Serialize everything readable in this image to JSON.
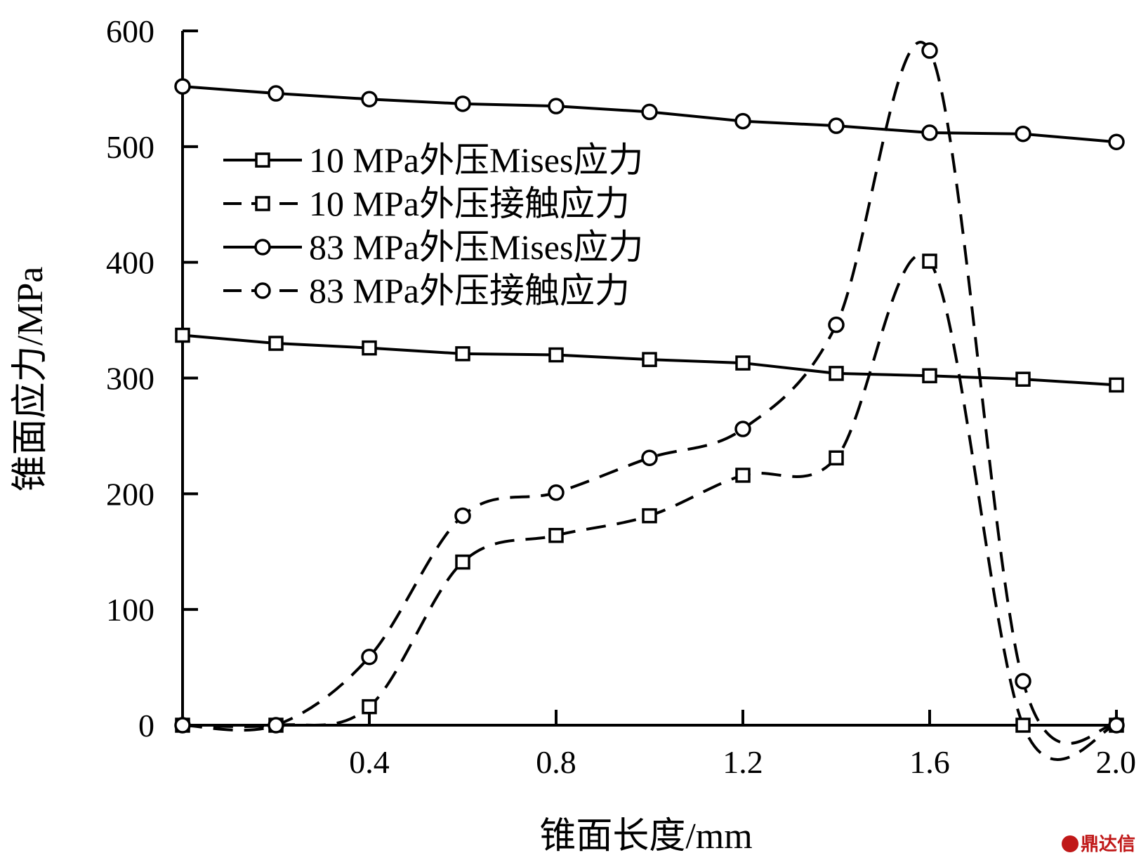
{
  "chart_data": {
    "type": "line",
    "xlabel": "锥面长度/mm",
    "ylabel": "锥面应力/MPa",
    "xlim": [
      0,
      2.0
    ],
    "ylim": [
      0,
      600
    ],
    "x_ticks": [
      0.4,
      0.8,
      1.2,
      1.6,
      2.0
    ],
    "x_tick_labels": [
      "0.4",
      "0.8",
      "1.2",
      "1.6",
      "2.0"
    ],
    "y_ticks": [
      0,
      100,
      200,
      300,
      400,
      500,
      600
    ],
    "y_tick_labels": [
      "0",
      "100",
      "200",
      "300",
      "400",
      "500",
      "600"
    ],
    "grid": false,
    "legend_position": "upper-left",
    "x": [
      0,
      0.2,
      0.4,
      0.6,
      0.8,
      1.0,
      1.2,
      1.4,
      1.6,
      1.8,
      2.0
    ],
    "series": [
      {
        "name": "10 MPa外压Mises应力",
        "marker": "square",
        "line": "solid",
        "values": [
          337,
          330,
          326,
          321,
          320,
          316,
          313,
          304,
          302,
          299,
          294
        ]
      },
      {
        "name": "10 MPa外压接触应力",
        "marker": "square",
        "line": "dashed",
        "values": [
          0,
          0,
          16,
          141,
          164,
          181,
          216,
          231,
          401,
          0,
          0
        ]
      },
      {
        "name": "83 MPa外压Mises应力",
        "marker": "circle",
        "line": "solid",
        "values": [
          552,
          546,
          541,
          537,
          535,
          530,
          522,
          518,
          512,
          511,
          504
        ]
      },
      {
        "name": "83 MPa外压接触应力",
        "marker": "circle",
        "line": "dashed",
        "values": [
          0,
          0,
          59,
          181,
          201,
          231,
          256,
          346,
          583,
          38,
          0
        ]
      }
    ]
  },
  "watermark": {
    "text": "鼎达信",
    "color": "#c01818"
  }
}
